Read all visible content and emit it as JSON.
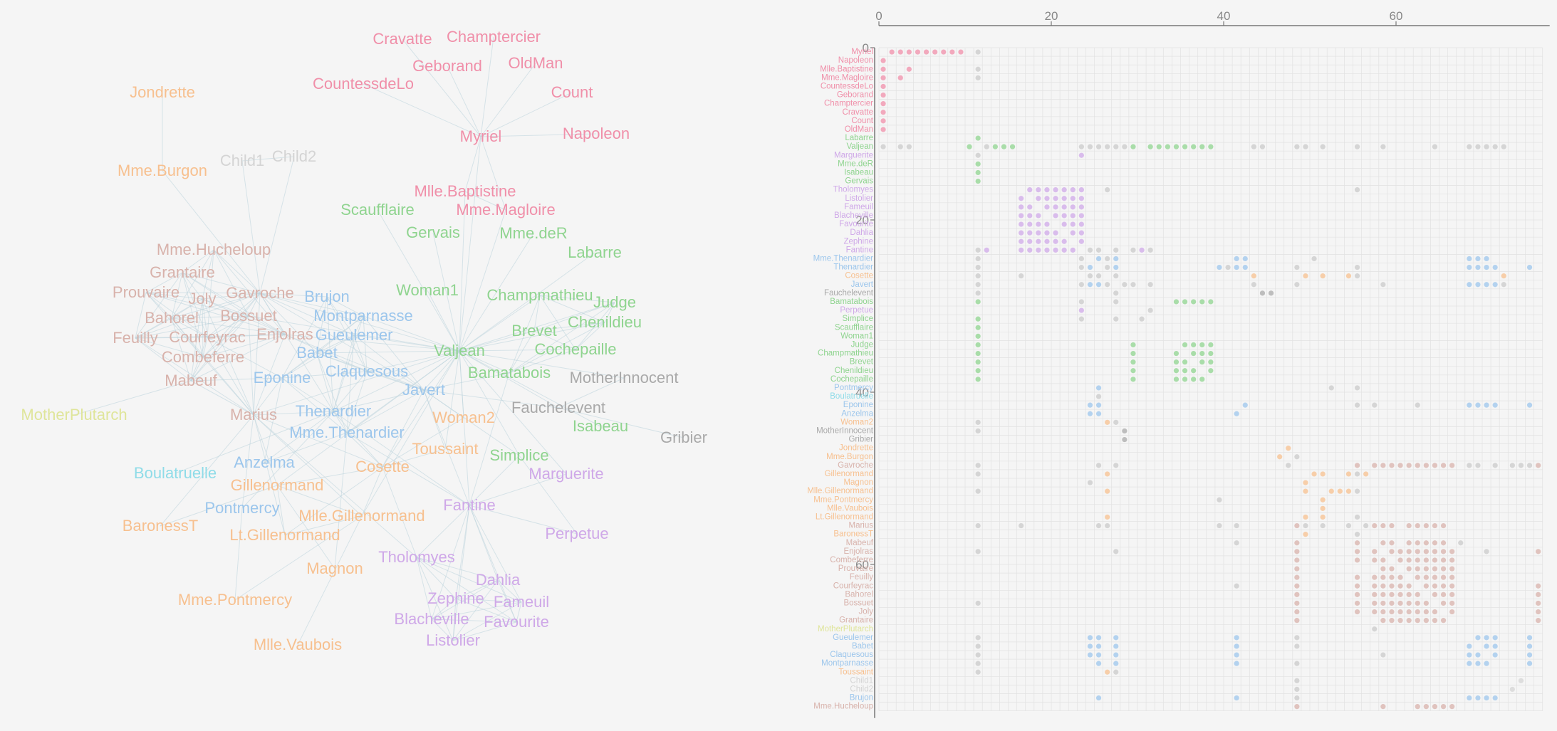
{
  "colors": {
    "myriel": "#f08fa9",
    "valjean": "#8fd48f",
    "tholomyes": "#cfa8e8",
    "thenardier": "#9cc6ec",
    "cosette": "#f7c08f",
    "fauchelevent": "#a9a9a9",
    "gavroche": "#d8b2ab",
    "plutarch": "#dfe59a",
    "boulatruelle": "#8fdce8",
    "child": "#d4d4d4"
  },
  "nodes": [
    {
      "name": "Myriel",
      "group": "myriel"
    },
    {
      "name": "Napoleon",
      "group": "myriel"
    },
    {
      "name": "Mlle.Baptistine",
      "group": "myriel"
    },
    {
      "name": "Mme.Magloire",
      "group": "myriel"
    },
    {
      "name": "CountessdeLo",
      "group": "myriel"
    },
    {
      "name": "Geborand",
      "group": "myriel"
    },
    {
      "name": "Champtercier",
      "group": "myriel"
    },
    {
      "name": "Cravatte",
      "group": "myriel"
    },
    {
      "name": "Count",
      "group": "myriel"
    },
    {
      "name": "OldMan",
      "group": "myriel"
    },
    {
      "name": "Labarre",
      "group": "valjean"
    },
    {
      "name": "Valjean",
      "group": "valjean"
    },
    {
      "name": "Marguerite",
      "group": "tholomyes"
    },
    {
      "name": "Mme.deR",
      "group": "valjean"
    },
    {
      "name": "Isabeau",
      "group": "valjean"
    },
    {
      "name": "Gervais",
      "group": "valjean"
    },
    {
      "name": "Tholomyes",
      "group": "tholomyes"
    },
    {
      "name": "Listolier",
      "group": "tholomyes"
    },
    {
      "name": "Fameuil",
      "group": "tholomyes"
    },
    {
      "name": "Blacheville",
      "group": "tholomyes"
    },
    {
      "name": "Favourite",
      "group": "tholomyes"
    },
    {
      "name": "Dahlia",
      "group": "tholomyes"
    },
    {
      "name": "Zephine",
      "group": "tholomyes"
    },
    {
      "name": "Fantine",
      "group": "tholomyes"
    },
    {
      "name": "Mme.Thenardier",
      "group": "thenardier"
    },
    {
      "name": "Thenardier",
      "group": "thenardier"
    },
    {
      "name": "Cosette",
      "group": "cosette"
    },
    {
      "name": "Javert",
      "group": "thenardier"
    },
    {
      "name": "Fauchelevent",
      "group": "fauchelevent"
    },
    {
      "name": "Bamatabois",
      "group": "valjean"
    },
    {
      "name": "Perpetue",
      "group": "tholomyes"
    },
    {
      "name": "Simplice",
      "group": "valjean"
    },
    {
      "name": "Scaufflaire",
      "group": "valjean"
    },
    {
      "name": "Woman1",
      "group": "valjean"
    },
    {
      "name": "Judge",
      "group": "valjean"
    },
    {
      "name": "Champmathieu",
      "group": "valjean"
    },
    {
      "name": "Brevet",
      "group": "valjean"
    },
    {
      "name": "Chenildieu",
      "group": "valjean"
    },
    {
      "name": "Cochepaille",
      "group": "valjean"
    },
    {
      "name": "Pontmercy",
      "group": "thenardier"
    },
    {
      "name": "Boulatruelle",
      "group": "boulatruelle"
    },
    {
      "name": "Eponine",
      "group": "thenardier"
    },
    {
      "name": "Anzelma",
      "group": "thenardier"
    },
    {
      "name": "Woman2",
      "group": "cosette"
    },
    {
      "name": "MotherInnocent",
      "group": "fauchelevent"
    },
    {
      "name": "Gribier",
      "group": "fauchelevent"
    },
    {
      "name": "Jondrette",
      "group": "cosette"
    },
    {
      "name": "Mme.Burgon",
      "group": "cosette"
    },
    {
      "name": "Gavroche",
      "group": "gavroche"
    },
    {
      "name": "Gillenormand",
      "group": "cosette"
    },
    {
      "name": "Magnon",
      "group": "cosette"
    },
    {
      "name": "Mlle.Gillenormand",
      "group": "cosette"
    },
    {
      "name": "Mme.Pontmercy",
      "group": "cosette"
    },
    {
      "name": "Mlle.Vaubois",
      "group": "cosette"
    },
    {
      "name": "Lt.Gillenormand",
      "group": "cosette"
    },
    {
      "name": "Marius",
      "group": "gavroche"
    },
    {
      "name": "BaronessT",
      "group": "cosette"
    },
    {
      "name": "Mabeuf",
      "group": "gavroche"
    },
    {
      "name": "Enjolras",
      "group": "gavroche"
    },
    {
      "name": "Combeferre",
      "group": "gavroche"
    },
    {
      "name": "Prouvaire",
      "group": "gavroche"
    },
    {
      "name": "Feuilly",
      "group": "gavroche"
    },
    {
      "name": "Courfeyrac",
      "group": "gavroche"
    },
    {
      "name": "Bahorel",
      "group": "gavroche"
    },
    {
      "name": "Bossuet",
      "group": "gavroche"
    },
    {
      "name": "Joly",
      "group": "gavroche"
    },
    {
      "name": "Grantaire",
      "group": "gavroche"
    },
    {
      "name": "MotherPlutarch",
      "group": "plutarch"
    },
    {
      "name": "Gueulemer",
      "group": "thenardier"
    },
    {
      "name": "Babet",
      "group": "thenardier"
    },
    {
      "name": "Claquesous",
      "group": "thenardier"
    },
    {
      "name": "Montparnasse",
      "group": "thenardier"
    },
    {
      "name": "Toussaint",
      "group": "cosette"
    },
    {
      "name": "Child1",
      "group": "child"
    },
    {
      "name": "Child2",
      "group": "child"
    },
    {
      "name": "Brujon",
      "group": "thenardier"
    },
    {
      "name": "Mme.Hucheloup",
      "group": "gavroche"
    }
  ],
  "links": [
    [
      1,
      0
    ],
    [
      2,
      0
    ],
    [
      3,
      0
    ],
    [
      3,
      2
    ],
    [
      4,
      0
    ],
    [
      5,
      0
    ],
    [
      6,
      0
    ],
    [
      7,
      0
    ],
    [
      8,
      0
    ],
    [
      9,
      0
    ],
    [
      11,
      10
    ],
    [
      11,
      3
    ],
    [
      11,
      2
    ],
    [
      11,
      0
    ],
    [
      12,
      11
    ],
    [
      13,
      11
    ],
    [
      14,
      11
    ],
    [
      15,
      11
    ],
    [
      17,
      16
    ],
    [
      18,
      16
    ],
    [
      18,
      17
    ],
    [
      19,
      16
    ],
    [
      19,
      17
    ],
    [
      19,
      18
    ],
    [
      20,
      16
    ],
    [
      20,
      17
    ],
    [
      20,
      18
    ],
    [
      20,
      19
    ],
    [
      21,
      16
    ],
    [
      21,
      17
    ],
    [
      21,
      18
    ],
    [
      21,
      19
    ],
    [
      21,
      20
    ],
    [
      22,
      16
    ],
    [
      22,
      17
    ],
    [
      22,
      18
    ],
    [
      22,
      19
    ],
    [
      22,
      20
    ],
    [
      22,
      21
    ],
    [
      23,
      16
    ],
    [
      23,
      17
    ],
    [
      23,
      18
    ],
    [
      23,
      19
    ],
    [
      23,
      20
    ],
    [
      23,
      21
    ],
    [
      23,
      22
    ],
    [
      23,
      12
    ],
    [
      23,
      11
    ],
    [
      24,
      23
    ],
    [
      24,
      11
    ],
    [
      25,
      24
    ],
    [
      25,
      23
    ],
    [
      25,
      11
    ],
    [
      26,
      24
    ],
    [
      26,
      11
    ],
    [
      26,
      16
    ],
    [
      26,
      25
    ],
    [
      27,
      11
    ],
    [
      27,
      23
    ],
    [
      27,
      25
    ],
    [
      27,
      24
    ],
    [
      27,
      26
    ],
    [
      28,
      11
    ],
    [
      28,
      27
    ],
    [
      29,
      23
    ],
    [
      29,
      27
    ],
    [
      29,
      11
    ],
    [
      30,
      23
    ],
    [
      31,
      30
    ],
    [
      31,
      11
    ],
    [
      31,
      23
    ],
    [
      31,
      27
    ],
    [
      32,
      11
    ],
    [
      33,
      11
    ],
    [
      34,
      11
    ],
    [
      34,
      29
    ],
    [
      35,
      11
    ],
    [
      35,
      34
    ],
    [
      35,
      29
    ],
    [
      36,
      34
    ],
    [
      36,
      35
    ],
    [
      36,
      11
    ],
    [
      36,
      29
    ],
    [
      37,
      34
    ],
    [
      37,
      35
    ],
    [
      37,
      36
    ],
    [
      37,
      11
    ],
    [
      37,
      29
    ],
    [
      38,
      34
    ],
    [
      38,
      35
    ],
    [
      38,
      36
    ],
    [
      38,
      37
    ],
    [
      38,
      11
    ],
    [
      38,
      29
    ],
    [
      39,
      25
    ],
    [
      40,
      25
    ],
    [
      41,
      24
    ],
    [
      41,
      25
    ],
    [
      42,
      41
    ],
    [
      42,
      25
    ],
    [
      42,
      24
    ],
    [
      43,
      11
    ],
    [
      43,
      26
    ],
    [
      43,
      27
    ],
    [
      44,
      28
    ],
    [
      44,
      11
    ],
    [
      45,
      28
    ],
    [
      47,
      46
    ],
    [
      48,
      47
    ],
    [
      48,
      25
    ],
    [
      48,
      27
    ],
    [
      48,
      11
    ],
    [
      49,
      26
    ],
    [
      49,
      11
    ],
    [
      50,
      49
    ],
    [
      50,
      24
    ],
    [
      51,
      49
    ],
    [
      51,
      26
    ],
    [
      51,
      11
    ],
    [
      52,
      51
    ],
    [
      52,
      39
    ],
    [
      53,
      51
    ],
    [
      54,
      51
    ],
    [
      54,
      49
    ],
    [
      54,
      26
    ],
    [
      55,
      51
    ],
    [
      55,
      49
    ],
    [
      55,
      39
    ],
    [
      55,
      54
    ],
    [
      55,
      26
    ],
    [
      55,
      11
    ],
    [
      55,
      16
    ],
    [
      55,
      25
    ],
    [
      55,
      41
    ],
    [
      55,
      48
    ],
    [
      56,
      49
    ],
    [
      56,
      55
    ],
    [
      57,
      55
    ],
    [
      57,
      41
    ],
    [
      57,
      48
    ],
    [
      58,
      55
    ],
    [
      58,
      48
    ],
    [
      58,
      27
    ],
    [
      58,
      57
    ],
    [
      58,
      11
    ],
    [
      59,
      58
    ],
    [
      59,
      55
    ],
    [
      59,
      48
    ],
    [
      59,
      57
    ],
    [
      60,
      48
    ],
    [
      60,
      58
    ],
    [
      60,
      59
    ],
    [
      61,
      48
    ],
    [
      61,
      58
    ],
    [
      61,
      60
    ],
    [
      61,
      59
    ],
    [
      61,
      57
    ],
    [
      61,
      55
    ],
    [
      62,
      55
    ],
    [
      62,
      58
    ],
    [
      62,
      59
    ],
    [
      62,
      48
    ],
    [
      62,
      57
    ],
    [
      62,
      41
    ],
    [
      62,
      61
    ],
    [
      62,
      60
    ],
    [
      63,
      59
    ],
    [
      63,
      48
    ],
    [
      63,
      62
    ],
    [
      63,
      57
    ],
    [
      63,
      58
    ],
    [
      63,
      61
    ],
    [
      63,
      60
    ],
    [
      63,
      55
    ],
    [
      64,
      55
    ],
    [
      64,
      62
    ],
    [
      64,
      48
    ],
    [
      64,
      63
    ],
    [
      64,
      58
    ],
    [
      64,
      61
    ],
    [
      64,
      60
    ],
    [
      64,
      59
    ],
    [
      64,
      57
    ],
    [
      64,
      11
    ],
    [
      65,
      63
    ],
    [
      65,
      64
    ],
    [
      65,
      48
    ],
    [
      65,
      62
    ],
    [
      65,
      58
    ],
    [
      65,
      61
    ],
    [
      65,
      60
    ],
    [
      65,
      59
    ],
    [
      65,
      57
    ],
    [
      65,
      55
    ],
    [
      66,
      64
    ],
    [
      66,
      58
    ],
    [
      66,
      59
    ],
    [
      66,
      62
    ],
    [
      66,
      65
    ],
    [
      66,
      48
    ],
    [
      66,
      63
    ],
    [
      66,
      61
    ],
    [
      66,
      60
    ],
    [
      67,
      57
    ],
    [
      68,
      25
    ],
    [
      68,
      11
    ],
    [
      68,
      24
    ],
    [
      68,
      27
    ],
    [
      68,
      48
    ],
    [
      68,
      41
    ],
    [
      69,
      25
    ],
    [
      69,
      68
    ],
    [
      69,
      11
    ],
    [
      69,
      24
    ],
    [
      69,
      27
    ],
    [
      69,
      48
    ],
    [
      69,
      41
    ],
    [
      70,
      25
    ],
    [
      70,
      69
    ],
    [
      70,
      68
    ],
    [
      70,
      11
    ],
    [
      70,
      24
    ],
    [
      70,
      27
    ],
    [
      70,
      41
    ],
    [
      70,
      58
    ],
    [
      71,
      27
    ],
    [
      71,
      69
    ],
    [
      71,
      68
    ],
    [
      71,
      70
    ],
    [
      71,
      11
    ],
    [
      71,
      48
    ],
    [
      71,
      41
    ],
    [
      71,
      25
    ],
    [
      72,
      26
    ],
    [
      72,
      27
    ],
    [
      72,
      11
    ],
    [
      73,
      48
    ],
    [
      74,
      48
    ],
    [
      74,
      73
    ],
    [
      75,
      69
    ],
    [
      75,
      68
    ],
    [
      75,
      25
    ],
    [
      75,
      48
    ],
    [
      75,
      41
    ],
    [
      75,
      70
    ],
    [
      75,
      71
    ],
    [
      76,
      64
    ],
    [
      76,
      65
    ],
    [
      76,
      66
    ],
    [
      76,
      63
    ],
    [
      76,
      62
    ],
    [
      76,
      48
    ],
    [
      76,
      58
    ]
  ],
  "matrix": {
    "axis_ticks": [
      "0",
      "20",
      "40",
      "60"
    ],
    "tick_values": [
      0,
      20,
      40,
      60
    ]
  }
}
